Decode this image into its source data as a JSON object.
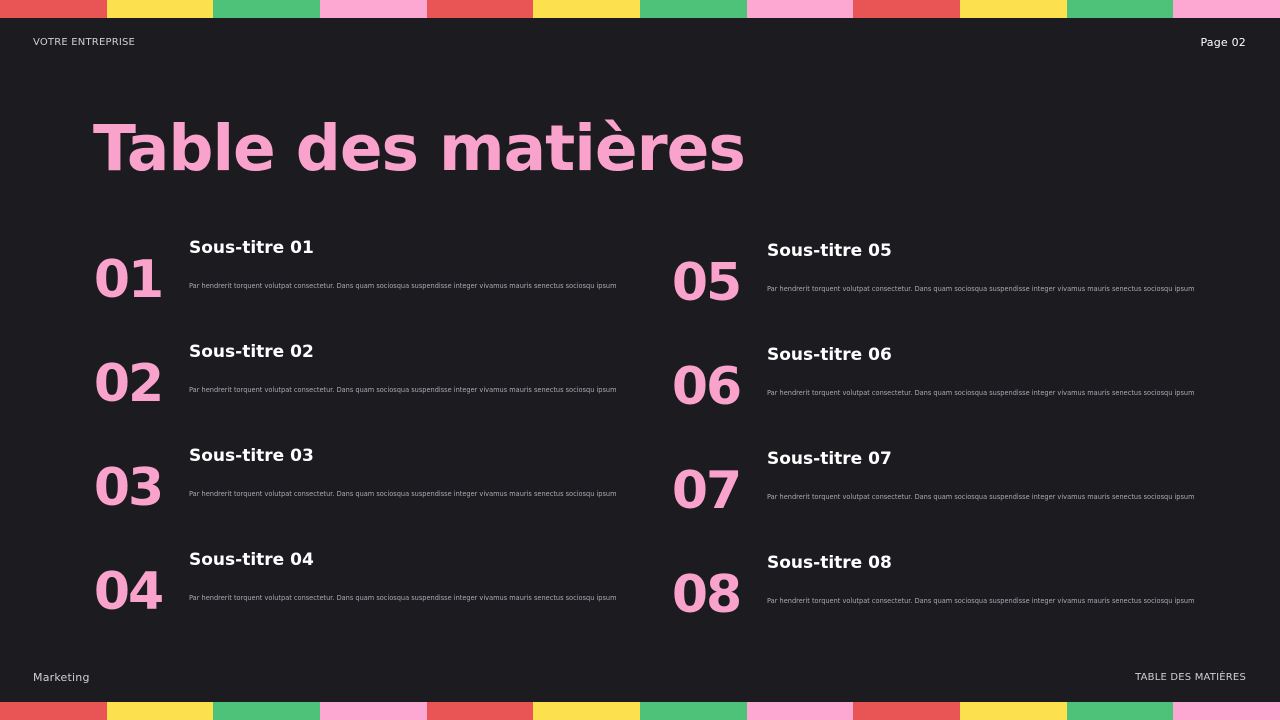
{
  "colors": {
    "background": "#1c1b20",
    "accent": "#f9a3cc",
    "strip": [
      "#e95455",
      "#fde04e",
      "#4fc27a",
      "#fca8d2"
    ]
  },
  "header": {
    "company": "VOTRE ENTREPRISE",
    "page": "Page 02"
  },
  "title": "Table des matières",
  "footer": {
    "left": "Marketing",
    "right": "TABLE DES MATIÈRES"
  },
  "items": [
    {
      "number": "01",
      "subtitle": "Sous-titre 01",
      "description": "Par hendrerit torquent volutpat consectetur. Dans quam sociosqua suspendisse integer vivamus mauris senectus sociosqu ipsum"
    },
    {
      "number": "02",
      "subtitle": "Sous-titre 02",
      "description": "Par hendrerit torquent volutpat consectetur. Dans quam sociosqua suspendisse integer vivamus mauris senectus sociosqu ipsum"
    },
    {
      "number": "03",
      "subtitle": "Sous-titre 03",
      "description": "Par hendrerit torquent volutpat consectetur. Dans quam sociosqua suspendisse integer vivamus mauris senectus sociosqu ipsum"
    },
    {
      "number": "04",
      "subtitle": "Sous-titre 04",
      "description": "Par hendrerit torquent volutpat consectetur. Dans quam sociosqua suspendisse integer vivamus mauris senectus sociosqu ipsum"
    },
    {
      "number": "05",
      "subtitle": "Sous-titre 05",
      "description": "Par hendrerit torquent volutpat consectetur. Dans quam sociosqua suspendisse integer vivamus mauris senectus sociosqu ipsum"
    },
    {
      "number": "06",
      "subtitle": "Sous-titre 06",
      "description": "Par hendrerit torquent volutpat consectetur. Dans quam sociosqua suspendisse integer vivamus mauris senectus sociosqu ipsum"
    },
    {
      "number": "07",
      "subtitle": "Sous-titre 07",
      "description": "Par hendrerit torquent volutpat consectetur. Dans quam sociosqua suspendisse integer vivamus mauris senectus sociosqu ipsum"
    },
    {
      "number": "08",
      "subtitle": "Sous-titre 08",
      "description": "Par hendrerit torquent volutpat consectetur. Dans quam sociosqua suspendisse integer vivamus mauris senectus sociosqu ipsum"
    }
  ]
}
